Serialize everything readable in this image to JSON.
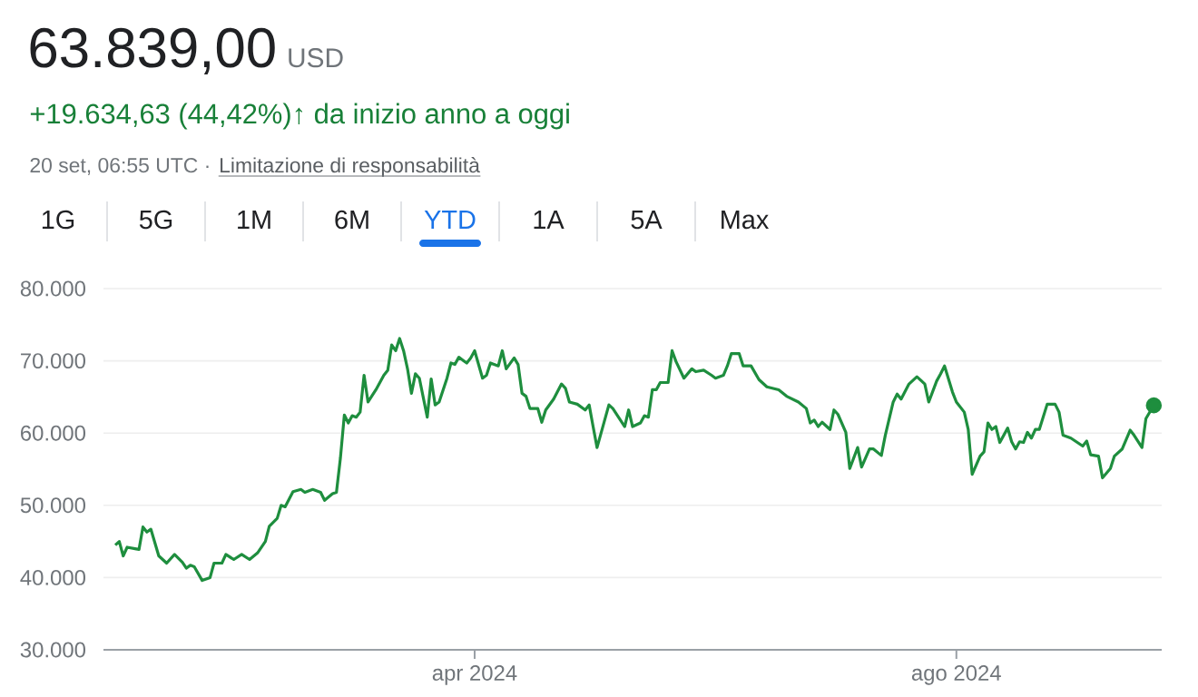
{
  "chart_data": {
    "type": "line",
    "title": "63.839,00",
    "subtitle": "+19.634,63 (44,42%)↑ da inizio anno a oggi",
    "annotations": [
      "USD",
      "20 set, 06:55 UTC ·",
      "Limitazione di responsabilità",
      "1G",
      "5G",
      "1M",
      "6M",
      "YTD",
      "1A",
      "5A",
      "Max"
    ],
    "xlim": [
      "2023-12-29",
      "2024-09-22"
    ],
    "xticks": [
      {
        "value": "2024-04-01",
        "label": "apr 2024"
      },
      {
        "value": "2024-08-01",
        "label": "ago 2024"
      }
    ],
    "ylim": [
      30000,
      80000
    ],
    "yticks": [
      {
        "value": 30000,
        "label": "30.000"
      },
      {
        "value": 40000,
        "label": "40.000"
      },
      {
        "value": 50000,
        "label": "50.000"
      },
      {
        "value": 60000,
        "label": "60.000"
      },
      {
        "value": 70000,
        "label": "70.000"
      },
      {
        "value": 80000,
        "label": "80.000"
      }
    ],
    "grid": "y",
    "series": [
      {
        "color": "#1e8e3e",
        "x": [
          "2024-01-01",
          "2024-01-02",
          "2024-01-03",
          "2024-01-04",
          "2024-01-06",
          "2024-01-07",
          "2024-01-08",
          "2024-01-09",
          "2024-01-10",
          "2024-01-12",
          "2024-01-13",
          "2024-01-14",
          "2024-01-16",
          "2024-01-18",
          "2024-01-19",
          "2024-01-20",
          "2024-01-21",
          "2024-01-23",
          "2024-01-25",
          "2024-01-26",
          "2024-01-28",
          "2024-01-29",
          "2024-01-31",
          "2024-02-02",
          "2024-02-04",
          "2024-02-06",
          "2024-02-08",
          "2024-02-09",
          "2024-02-11",
          "2024-02-12",
          "2024-02-13",
          "2024-02-15",
          "2024-02-17",
          "2024-02-18",
          "2024-02-20",
          "2024-02-22",
          "2024-02-23",
          "2024-02-25",
          "2024-02-26",
          "2024-02-27",
          "2024-02-28",
          "2024-02-29",
          "2024-03-01",
          "2024-03-02",
          "2024-03-03",
          "2024-03-04",
          "2024-03-05",
          "2024-03-07",
          "2024-03-09",
          "2024-03-10",
          "2024-03-11",
          "2024-03-12",
          "2024-03-13",
          "2024-03-14",
          "2024-03-15",
          "2024-03-16",
          "2024-03-17",
          "2024-03-18",
          "2024-03-20",
          "2024-03-21",
          "2024-03-22",
          "2024-03-23",
          "2024-03-25",
          "2024-03-26",
          "2024-03-27",
          "2024-03-28",
          "2024-03-30",
          "2024-03-31",
          "2024-04-01",
          "2024-04-03",
          "2024-04-04",
          "2024-04-05",
          "2024-04-07",
          "2024-04-08",
          "2024-04-09",
          "2024-04-11",
          "2024-04-12",
          "2024-04-13",
          "2024-04-14",
          "2024-04-15",
          "2024-04-17",
          "2024-04-18",
          "2024-04-19",
          "2024-04-21",
          "2024-04-23",
          "2024-04-24",
          "2024-04-25",
          "2024-04-27",
          "2024-04-29",
          "2024-04-30",
          "2024-05-01",
          "2024-05-02",
          "2024-05-05",
          "2024-05-06",
          "2024-05-09",
          "2024-05-10",
          "2024-05-11",
          "2024-05-13",
          "2024-05-14",
          "2024-05-15",
          "2024-05-16",
          "2024-05-17",
          "2024-05-18",
          "2024-05-20",
          "2024-05-21",
          "2024-05-22",
          "2024-05-24",
          "2024-05-26",
          "2024-05-27",
          "2024-05-29",
          "2024-05-31",
          "2024-06-01",
          "2024-06-03",
          "2024-06-04",
          "2024-06-05",
          "2024-06-07",
          "2024-06-08",
          "2024-06-10",
          "2024-06-12",
          "2024-06-14",
          "2024-06-17",
          "2024-06-19",
          "2024-06-22",
          "2024-06-24",
          "2024-06-25",
          "2024-06-26",
          "2024-06-27",
          "2024-06-28",
          "2024-06-30",
          "2024-07-01",
          "2024-07-02",
          "2024-07-04",
          "2024-07-05",
          "2024-07-07",
          "2024-07-08",
          "2024-07-10",
          "2024-07-11",
          "2024-07-13",
          "2024-07-14",
          "2024-07-16",
          "2024-07-17",
          "2024-07-18",
          "2024-07-20",
          "2024-07-22",
          "2024-07-24",
          "2024-07-25",
          "2024-07-27",
          "2024-07-28",
          "2024-07-29",
          "2024-07-31",
          "2024-08-01",
          "2024-08-03",
          "2024-08-04",
          "2024-08-05",
          "2024-08-07",
          "2024-08-08",
          "2024-08-09",
          "2024-08-10",
          "2024-08-11",
          "2024-08-12",
          "2024-08-14",
          "2024-08-15",
          "2024-08-16",
          "2024-08-17",
          "2024-08-18",
          "2024-08-19",
          "2024-08-20",
          "2024-08-21",
          "2024-08-22",
          "2024-08-24",
          "2024-08-26",
          "2024-08-27",
          "2024-08-28",
          "2024-08-30",
          "2024-09-02",
          "2024-09-03",
          "2024-09-04",
          "2024-09-06",
          "2024-09-07",
          "2024-09-09",
          "2024-09-10",
          "2024-09-12",
          "2024-09-14",
          "2024-09-15",
          "2024-09-17",
          "2024-09-18",
          "2024-09-20"
        ],
        "values": [
          44500,
          45000,
          43000,
          44200,
          44000,
          43900,
          47000,
          46300,
          46700,
          43000,
          42500,
          42000,
          43200,
          42100,
          41300,
          41700,
          41500,
          39600,
          40000,
          42000,
          42000,
          43200,
          42500,
          43200,
          42500,
          43400,
          45000,
          47100,
          48200,
          50000,
          49800,
          51900,
          52200,
          51800,
          52200,
          51800,
          50700,
          51600,
          51800,
          56500,
          62500,
          61400,
          62400,
          62200,
          62900,
          68000,
          64300,
          66000,
          68000,
          68700,
          72200,
          71400,
          73100,
          71400,
          68900,
          65500,
          68200,
          67600,
          62200,
          67500,
          63900,
          64300,
          67600,
          69700,
          69500,
          70500,
          69700,
          70400,
          71400,
          67600,
          68000,
          69700,
          69300,
          71400,
          68900,
          70400,
          69500,
          65500,
          65100,
          63400,
          63400,
          61500,
          63200,
          64700,
          66800,
          66200,
          64300,
          64000,
          63200,
          63900,
          60900,
          58000,
          63900,
          63400,
          60900,
          63200,
          60900,
          61400,
          62400,
          62200,
          66000,
          66000,
          67000,
          67000,
          71400,
          69900,
          67600,
          68900,
          68500,
          68700,
          68000,
          67600,
          68000,
          69300,
          71000,
          71000,
          69300,
          69300,
          67400,
          66400,
          66000,
          65100,
          64300,
          63400,
          61400,
          61800,
          60900,
          61500,
          60500,
          63200,
          62600,
          60100,
          55100,
          58000,
          55300,
          57800,
          57800,
          56900,
          59700,
          64300,
          65400,
          64700,
          66800,
          67800,
          66800,
          64300,
          67200,
          68200,
          69300,
          65700,
          64300,
          62900,
          60500,
          54300,
          56800,
          57400,
          61400,
          60500,
          60900,
          58700,
          60700,
          58800,
          57800,
          58800,
          58700,
          60100,
          59300,
          60500,
          60500,
          64000,
          64000,
          62900,
          59700,
          59300,
          58200,
          58900,
          57000,
          56800,
          53800,
          55100,
          56800,
          57800,
          60400,
          59700,
          58000,
          62000,
          63839
        ]
      },
      {
        "type": "scatter",
        "marker": "circle",
        "color": "#1e8e3e",
        "x": [
          "2024-09-20"
        ],
        "values": [
          63839
        ]
      }
    ]
  }
}
